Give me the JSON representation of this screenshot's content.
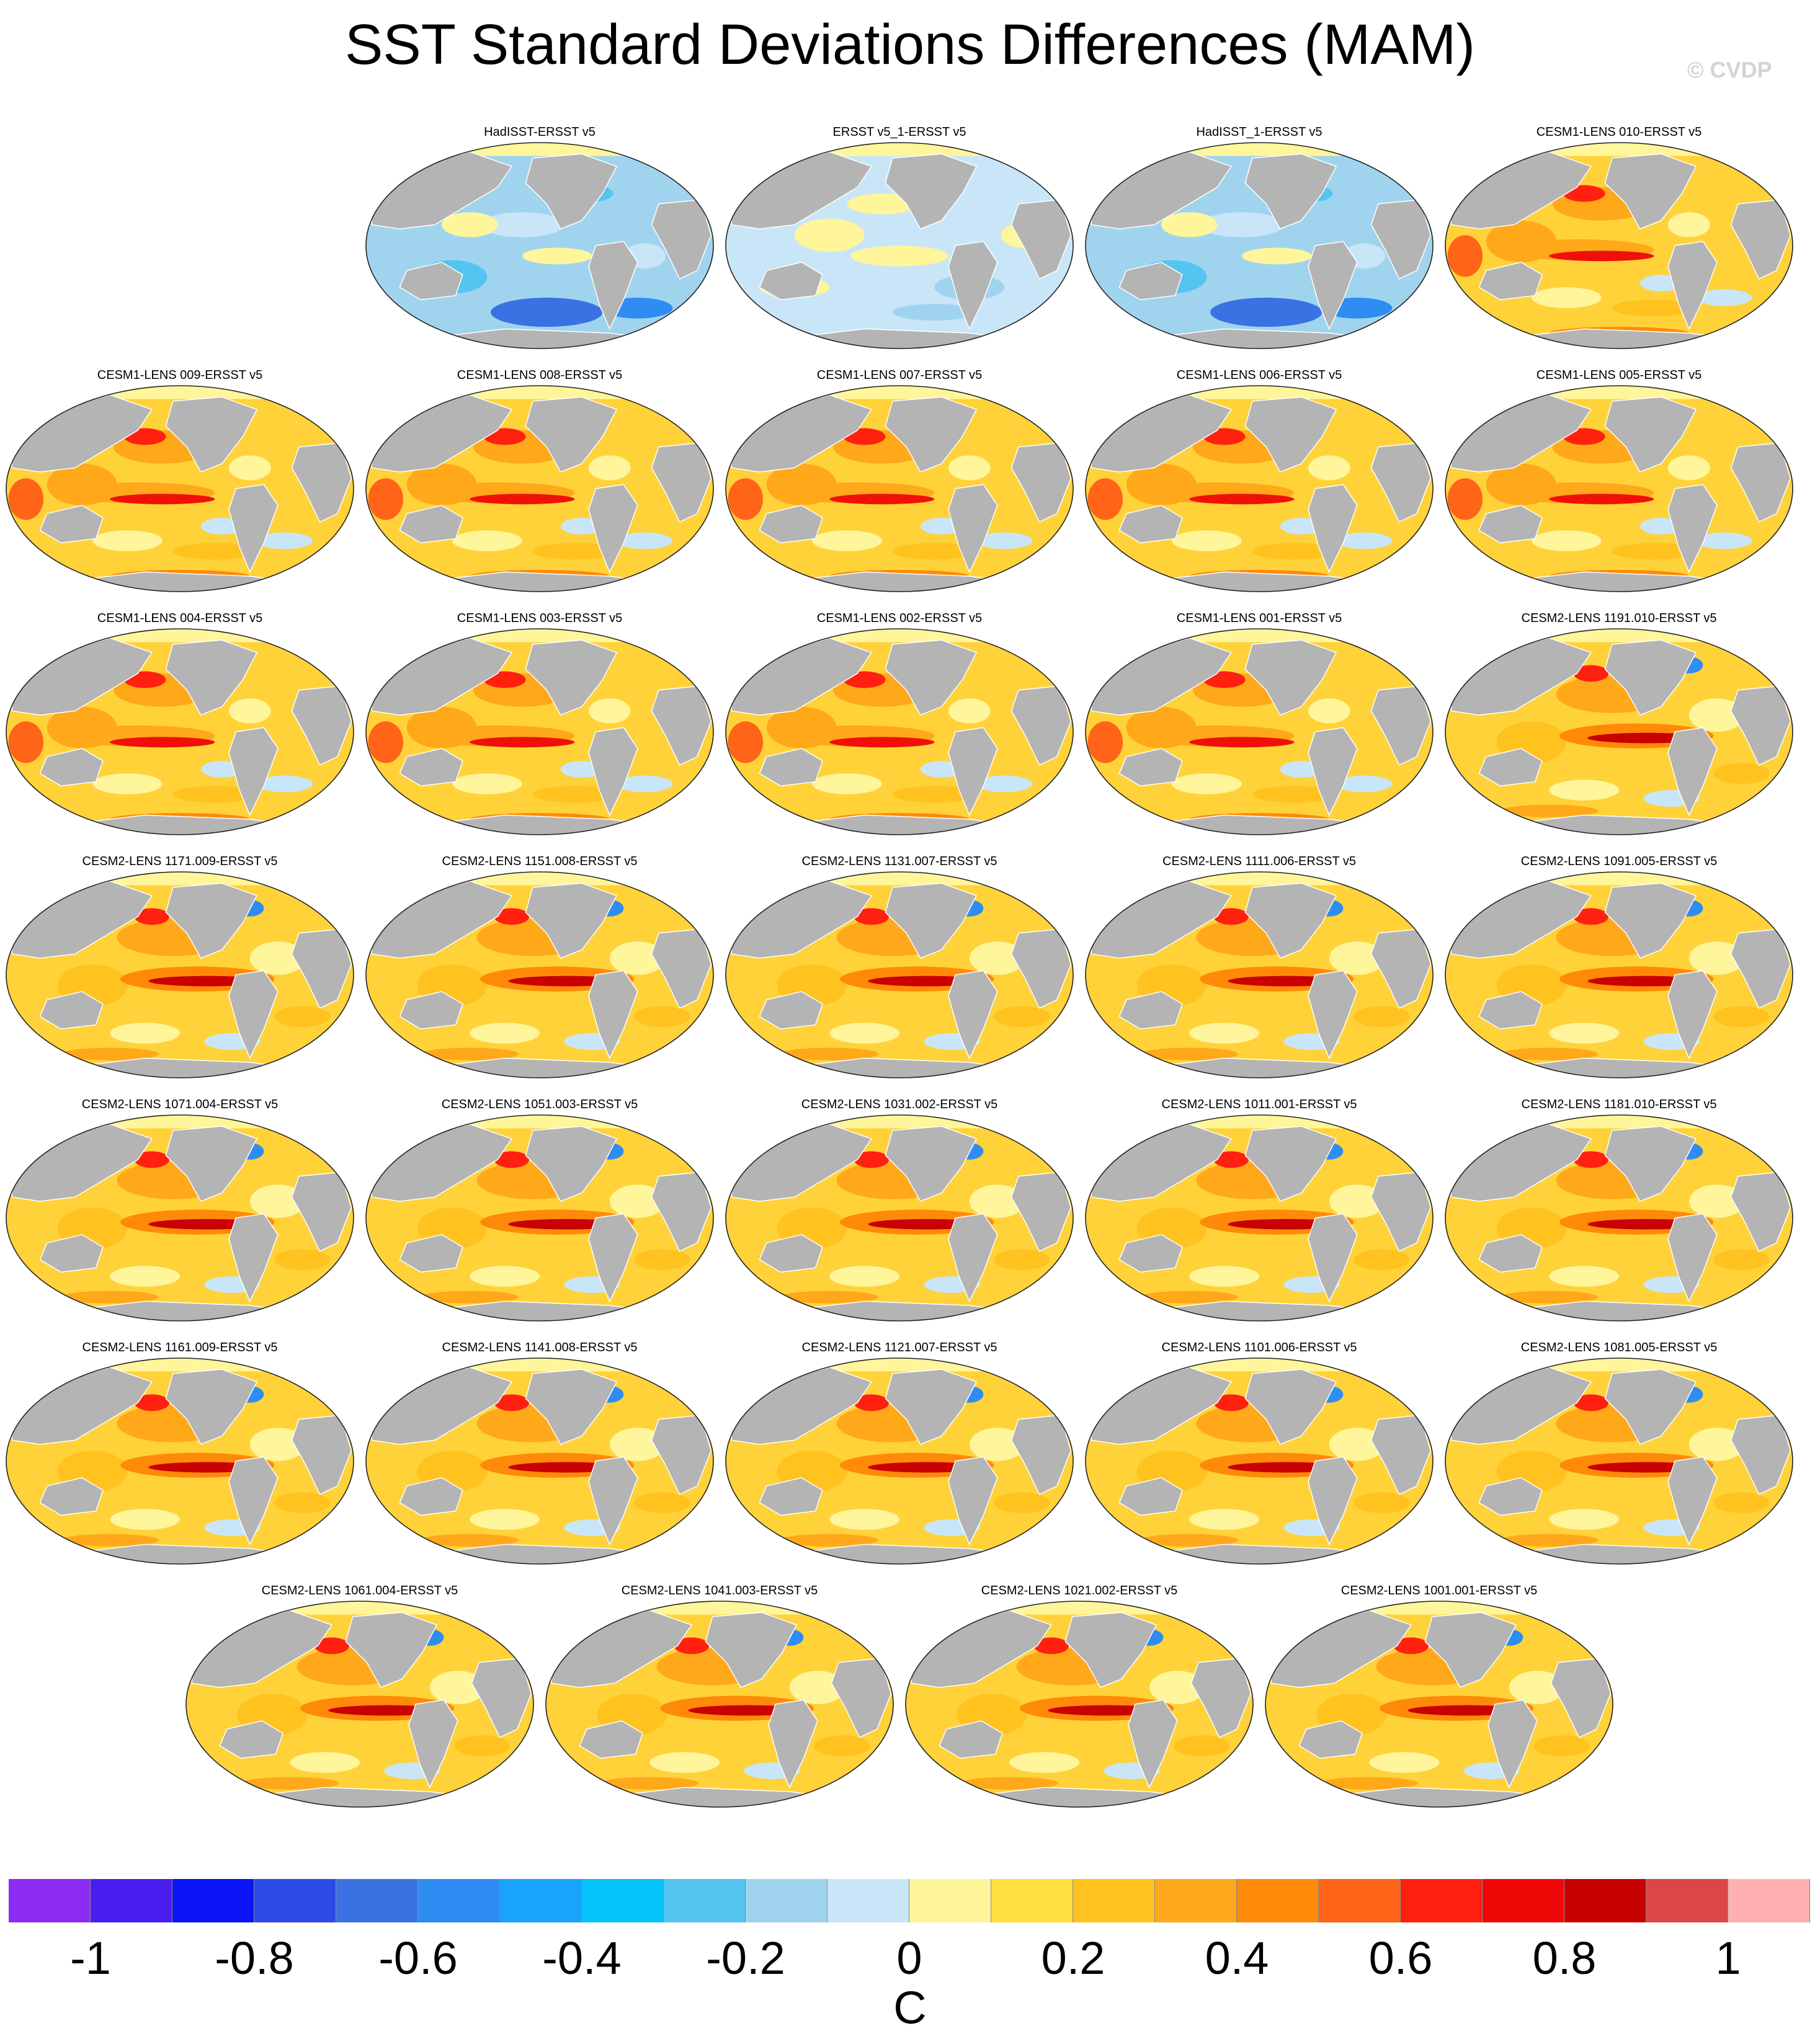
{
  "title": "SST Standard Deviations Differences (MAM)",
  "credit": "© CVDP",
  "units": "C",
  "colors": {
    "land": "#b4b4b4",
    "ocean_background": "#fff59a",
    "colorbar": [
      "#8c2cf2",
      "#4a1ef0",
      "#0a14f4",
      "#2e4ae6",
      "#3a72e4",
      "#2e8cf2",
      "#18a4fa",
      "#06c2fa",
      "#56c4f0",
      "#a0d4ee",
      "#c8e6f8",
      "#fff59a",
      "#ffe040",
      "#ffc21e",
      "#ffa81a",
      "#ff8a0a",
      "#ff6418",
      "#ff2010",
      "#f00808",
      "#c80000",
      "#dc4646",
      "#ffb0b0"
    ]
  },
  "colorbar_labels": [
    "-1",
    "-0.8",
    "-0.6",
    "-0.4",
    "-0.2",
    "0",
    "0.2",
    "0.4",
    "0.6",
    "0.8",
    "1"
  ],
  "panels": [
    {
      "title": "HadISST-ERSST v5",
      "style": "neg"
    },
    {
      "title": "ERSST v5_1-ERSST v5",
      "style": "mild"
    },
    {
      "title": "HadISST_1-ERSST v5",
      "style": "neg"
    },
    {
      "title": "CESM1-LENS 010-ERSST v5",
      "style": "pos1"
    },
    {
      "title": "CESM1-LENS 009-ERSST v5",
      "style": "pos1"
    },
    {
      "title": "CESM1-LENS 008-ERSST v5",
      "style": "pos1"
    },
    {
      "title": "CESM1-LENS 007-ERSST v5",
      "style": "pos1"
    },
    {
      "title": "CESM1-LENS 006-ERSST v5",
      "style": "pos1"
    },
    {
      "title": "CESM1-LENS 005-ERSST v5",
      "style": "pos1"
    },
    {
      "title": "CESM1-LENS 004-ERSST v5",
      "style": "pos1"
    },
    {
      "title": "CESM1-LENS 003-ERSST v5",
      "style": "pos1"
    },
    {
      "title": "CESM1-LENS 002-ERSST v5",
      "style": "pos1"
    },
    {
      "title": "CESM1-LENS 001-ERSST v5",
      "style": "pos1"
    },
    {
      "title": "CESM2-LENS 1191.010-ERSST v5",
      "style": "pos2"
    },
    {
      "title": "CESM2-LENS 1171.009-ERSST v5",
      "style": "pos2"
    },
    {
      "title": "CESM2-LENS 1151.008-ERSST v5",
      "style": "pos2"
    },
    {
      "title": "CESM2-LENS 1131.007-ERSST v5",
      "style": "pos2"
    },
    {
      "title": "CESM2-LENS 1111.006-ERSST v5",
      "style": "pos2"
    },
    {
      "title": "CESM2-LENS 1091.005-ERSST v5",
      "style": "pos2"
    },
    {
      "title": "CESM2-LENS 1071.004-ERSST v5",
      "style": "pos2"
    },
    {
      "title": "CESM2-LENS 1051.003-ERSST v5",
      "style": "pos2"
    },
    {
      "title": "CESM2-LENS 1031.002-ERSST v5",
      "style": "pos2"
    },
    {
      "title": "CESM2-LENS 1011.001-ERSST v5",
      "style": "pos2"
    },
    {
      "title": "CESM2-LENS 1181.010-ERSST v5",
      "style": "pos2"
    },
    {
      "title": "CESM2-LENS 1161.009-ERSST v5",
      "style": "pos2"
    },
    {
      "title": "CESM2-LENS 1141.008-ERSST v5",
      "style": "pos2"
    },
    {
      "title": "CESM2-LENS 1121.007-ERSST v5",
      "style": "pos2"
    },
    {
      "title": "CESM2-LENS 1101.006-ERSST v5",
      "style": "pos2"
    },
    {
      "title": "CESM2-LENS 1081.005-ERSST v5",
      "style": "pos2"
    },
    {
      "title": "CESM2-LENS 1061.004-ERSST v5",
      "style": "pos2"
    },
    {
      "title": "CESM2-LENS 1041.003-ERSST v5",
      "style": "pos2"
    },
    {
      "title": "CESM2-LENS 1021.002-ERSST v5",
      "style": "pos2"
    },
    {
      "title": "CESM2-LENS 1001.001-ERSST v5",
      "style": "pos2"
    }
  ]
}
